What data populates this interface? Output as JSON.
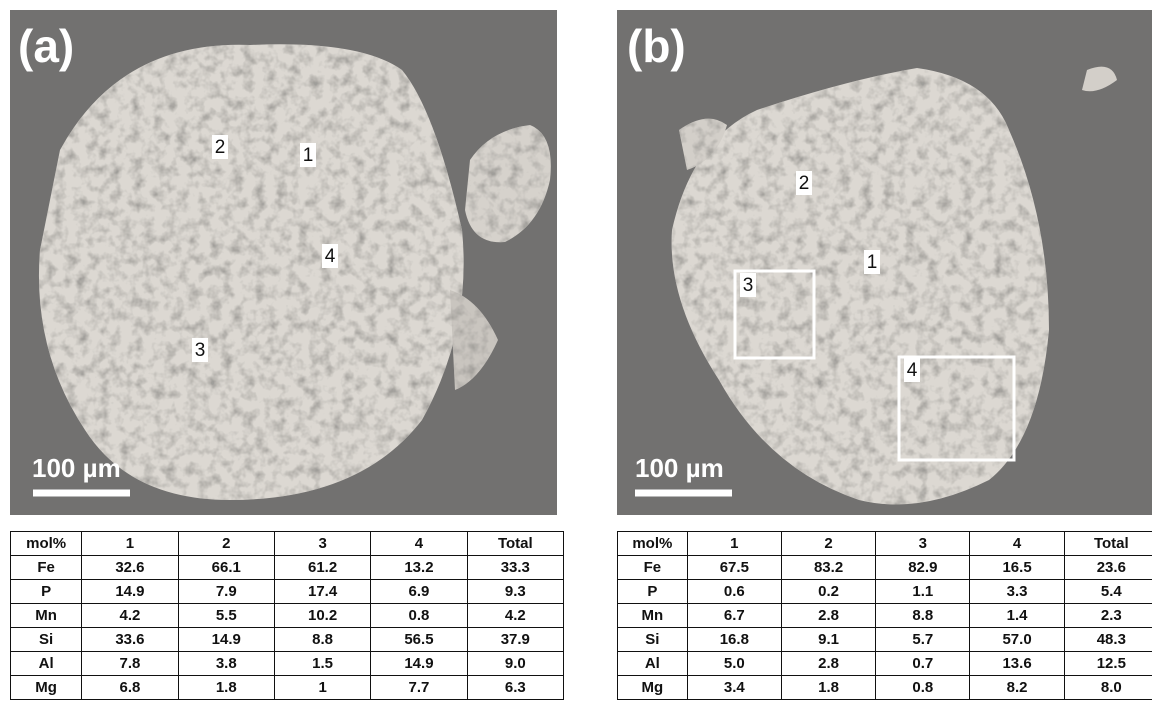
{
  "panels": [
    {
      "label": "(a)",
      "scale_bar": "100 µm",
      "points": [
        "1",
        "2",
        "3",
        "4"
      ],
      "table": {
        "header": [
          "mol%",
          "1",
          "2",
          "3",
          "4",
          "Total"
        ],
        "rows": [
          [
            "Fe",
            "32.6",
            "66.1",
            "61.2",
            "13.2",
            "33.3"
          ],
          [
            "P",
            "14.9",
            "7.9",
            "17.4",
            "6.9",
            "9.3"
          ],
          [
            "Mn",
            "4.2",
            "5.5",
            "10.2",
            "0.8",
            "4.2"
          ],
          [
            "Si",
            "33.6",
            "14.9",
            "8.8",
            "56.5",
            "37.9"
          ],
          [
            "Al",
            "7.8",
            "3.8",
            "1.5",
            "14.9",
            "9.0"
          ],
          [
            "Mg",
            "6.8",
            "1.8",
            "1",
            "7.7",
            "6.3"
          ]
        ]
      }
    },
    {
      "label": "(b)",
      "scale_bar": "100 µm",
      "points": [
        "1",
        "2",
        "3",
        "4"
      ],
      "table": {
        "header": [
          "mol%",
          "1",
          "2",
          "3",
          "4",
          "Total"
        ],
        "rows": [
          [
            "Fe",
            "67.5",
            "83.2",
            "82.9",
            "16.5",
            "23.6"
          ],
          [
            "P",
            "0.6",
            "0.2",
            "1.1",
            "3.3",
            "5.4"
          ],
          [
            "Mn",
            "6.7",
            "2.8",
            "8.8",
            "1.4",
            "2.3"
          ],
          [
            "Si",
            "16.8",
            "9.1",
            "5.7",
            "57.0",
            "48.3"
          ],
          [
            "Al",
            "5.0",
            "2.8",
            "0.7",
            "13.6",
            "12.5"
          ],
          [
            "Mg",
            "3.4",
            "1.8",
            "0.8",
            "8.2",
            "8.0"
          ]
        ]
      }
    }
  ]
}
